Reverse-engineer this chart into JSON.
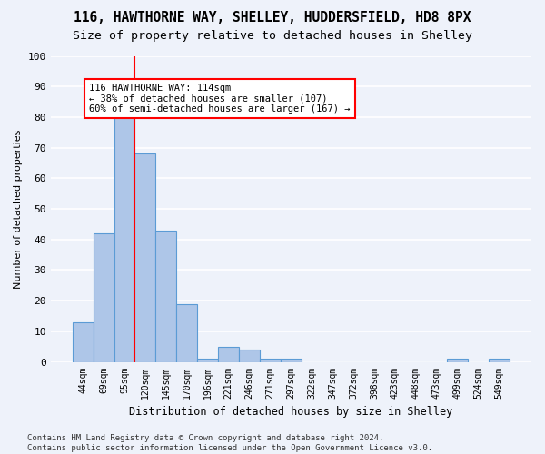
{
  "title1": "116, HAWTHORNE WAY, SHELLEY, HUDDERSFIELD, HD8 8PX",
  "title2": "Size of property relative to detached houses in Shelley",
  "xlabel": "Distribution of detached houses by size in Shelley",
  "ylabel": "Number of detached properties",
  "bar_values": [
    13,
    42,
    81,
    68,
    43,
    19,
    1,
    5,
    4,
    1,
    1,
    0,
    0,
    0,
    0,
    0,
    0,
    0,
    1,
    0,
    1
  ],
  "bar_labels": [
    "44sqm",
    "69sqm",
    "95sqm",
    "120sqm",
    "145sqm",
    "170sqm",
    "196sqm",
    "221sqm",
    "246sqm",
    "271sqm",
    "297sqm",
    "322sqm",
    "347sqm",
    "372sqm",
    "398sqm",
    "423sqm",
    "448sqm",
    "473sqm",
    "499sqm",
    "524sqm",
    "549sqm"
  ],
  "bar_color": "#aec6e8",
  "bar_edge_color": "#5b9bd5",
  "vline_color": "red",
  "annotation_text": "116 HAWTHORNE WAY: 114sqm\n← 38% of detached houses are smaller (107)\n60% of semi-detached houses are larger (167) →",
  "annotation_box_color": "white",
  "annotation_box_edge": "red",
  "ylim": [
    0,
    100
  ],
  "yticks": [
    0,
    10,
    20,
    30,
    40,
    50,
    60,
    70,
    80,
    90,
    100
  ],
  "footer": "Contains HM Land Registry data © Crown copyright and database right 2024.\nContains public sector information licensed under the Open Government Licence v3.0.",
  "background_color": "#eef2fa",
  "grid_color": "#ffffff",
  "title1_fontsize": 10.5,
  "title2_fontsize": 9.5
}
